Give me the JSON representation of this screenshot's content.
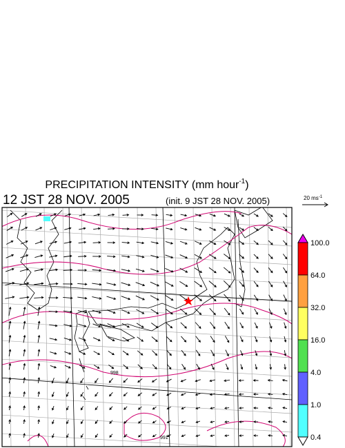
{
  "header": {
    "title": "PRECIPITATION INTENSITY (mm hour",
    "title_exp": "-1",
    "title_close": ")",
    "time": "12 JST 28 NOV. 2005",
    "init": "(init. 9 JST 28 NOV. 2005)"
  },
  "scale": {
    "label": "20 ms",
    "exp": "-1"
  },
  "isobar_labels": [
    "998",
    "991"
  ],
  "colorbar": {
    "labels": [
      "100.0",
      "64.0",
      "32.0",
      "16.0",
      "4.0",
      "1.0",
      "0.4"
    ],
    "colors": [
      "#ee00ee",
      "#ff0000",
      "#ffa040",
      "#ffff60",
      "#50e050",
      "#6060ff",
      "#50ffff",
      "#ffffff"
    ]
  }
}
